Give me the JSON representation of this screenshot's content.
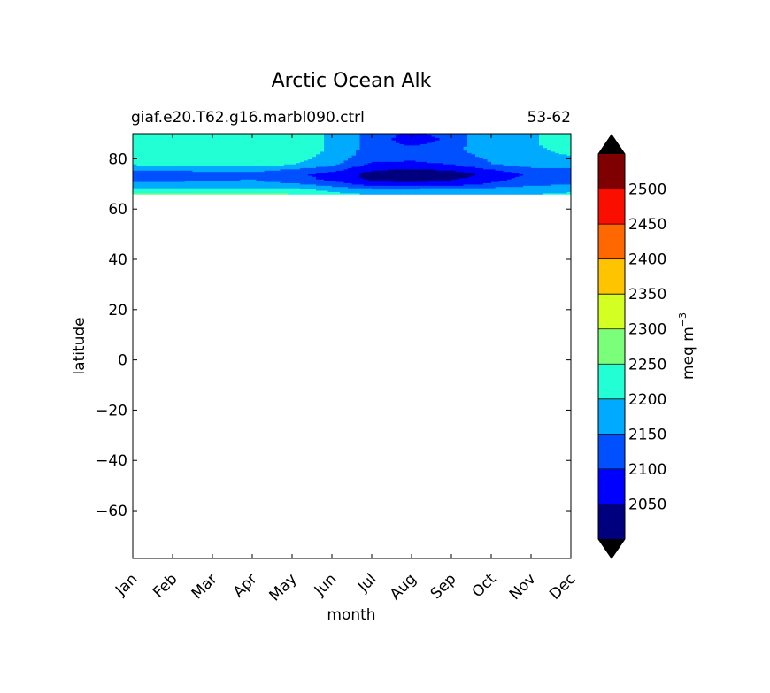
{
  "chart_data": {
    "type": "heatmap",
    "title": "Arctic Ocean Alk",
    "subtitle_left": "giaf.e20.T62.g16.marbl090.ctrl",
    "subtitle_right": "53-62",
    "xlabel": "month",
    "ylabel": "latitude",
    "x_ticks": [
      "Jan",
      "Feb",
      "Mar",
      "Apr",
      "May",
      "Jun",
      "Jul",
      "Aug",
      "Sep",
      "Oct",
      "Nov",
      "Dec"
    ],
    "y_ticks": [
      80,
      60,
      40,
      20,
      0,
      -20,
      -40,
      -60
    ],
    "y_tick_labels": [
      "80",
      "60",
      "40",
      "20",
      "0",
      "−20",
      "−40",
      "−60"
    ],
    "xlim": [
      0,
      11
    ],
    "ylim": [
      -79,
      90
    ],
    "colorbar": {
      "label": "meq m",
      "label_sup": "−3",
      "boundaries": [
        2000,
        2050,
        2100,
        2150,
        2200,
        2250,
        2300,
        2350,
        2400,
        2450,
        2500,
        2550
      ],
      "tick_values": [
        2050,
        2100,
        2150,
        2200,
        2250,
        2300,
        2350,
        2400,
        2450,
        2500
      ],
      "colors": [
        "#00007f",
        "#0000ff",
        "#0050ff",
        "#00aaff",
        "#22ffd4",
        "#7bff7b",
        "#d4ff22",
        "#ffc400",
        "#ff6800",
        "#fa0e00",
        "#7f0000"
      ],
      "under_color": "#000000",
      "over_color": "#000000",
      "extend": "both"
    },
    "field": {
      "description_note": "",
      "months": [
        0,
        1,
        2,
        3,
        4,
        5,
        6,
        7,
        8,
        9,
        10,
        11
      ],
      "latitudes": [
        66,
        68,
        70,
        72,
        74,
        76,
        78,
        80,
        82,
        84,
        86,
        88,
        90
      ],
      "values": [
        [
          2260,
          2262,
          2265,
          2262,
          2255,
          2215,
          2200,
          2200,
          2200,
          2200,
          2200,
          2210
        ],
        [
          2210,
          2212,
          2215,
          2215,
          2212,
          2185,
          2160,
          2160,
          2165,
          2170,
          2180,
          2185
        ],
        [
          2165,
          2165,
          2168,
          2168,
          2160,
          2130,
          2080,
          2070,
          2080,
          2110,
          2140,
          2150
        ],
        [
          2140,
          2140,
          2142,
          2150,
          2120,
          2090,
          2040,
          2030,
          2045,
          2080,
          2120,
          2125
        ],
        [
          2120,
          2125,
          2130,
          2140,
          2110,
          2085,
          2030,
          2010,
          2025,
          2060,
          2110,
          2112
        ],
        [
          2160,
          2162,
          2165,
          2165,
          2150,
          2120,
          2060,
          2045,
          2060,
          2100,
          2140,
          2140
        ],
        [
          2205,
          2210,
          2215,
          2212,
          2205,
          2160,
          2090,
          2090,
          2100,
          2150,
          2170,
          2170
        ],
        [
          2215,
          2218,
          2222,
          2222,
          2215,
          2180,
          2110,
          2105,
          2115,
          2155,
          2175,
          2185
        ],
        [
          2220,
          2222,
          2225,
          2225,
          2220,
          2190,
          2120,
          2110,
          2120,
          2175,
          2180,
          2205
        ],
        [
          2222,
          2225,
          2228,
          2228,
          2222,
          2195,
          2130,
          2115,
          2130,
          2195,
          2190,
          2215
        ],
        [
          2225,
          2228,
          2230,
          2230,
          2225,
          2195,
          2130,
          2090,
          2120,
          2200,
          2195,
          2218
        ],
        [
          2225,
          2228,
          2230,
          2230,
          2225,
          2195,
          2130,
          2070,
          2110,
          2200,
          2195,
          2215
        ],
        [
          2225,
          2228,
          2230,
          2230,
          2225,
          2195,
          2130,
          2090,
          2120,
          2200,
          2195,
          2215
        ]
      ]
    }
  }
}
